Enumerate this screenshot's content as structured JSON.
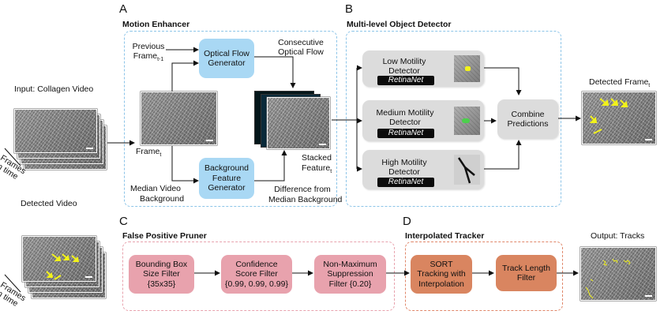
{
  "panels": {
    "a": {
      "letter": "A",
      "title": "Motion Enhancer"
    },
    "b": {
      "letter": "B",
      "title": "Multi-level Object Detector"
    },
    "c": {
      "letter": "C",
      "title": "False Positive Pruner"
    },
    "d": {
      "letter": "D",
      "title": "Interpolated Tracker"
    }
  },
  "left": {
    "input_label": "Input: Collagen Video",
    "frames_axis": "Frames",
    "in_time": "in time",
    "detected_video": "Detected Video"
  },
  "motion": {
    "previous_frame": "Previous",
    "previous_frame2": "Frame",
    "previous_sub": "t-1",
    "optical_flow": [
      "Optical Flow",
      "Generator"
    ],
    "consecutive": [
      "Consecutive",
      "Optical Flow"
    ],
    "frame_t": "Frame",
    "frame_t_sub": "t",
    "bg_feature": [
      "Background",
      "Feature",
      "Generator"
    ],
    "median_bg": [
      "Median  Video",
      "Background"
    ],
    "stacked": "Stacked",
    "stacked2": "Feature",
    "stacked_sub": "t",
    "difference": [
      "Difference from",
      "Median Background"
    ]
  },
  "detector": {
    "low": [
      "Low Motility",
      "Detector"
    ],
    "medium": [
      "Medium Motility",
      "Detector"
    ],
    "high": [
      "High Motility",
      "Detector"
    ],
    "retinanet": "RetinaNet",
    "combine": [
      "Combine",
      "Predictions"
    ],
    "detected_frame": "Detected Frame",
    "detected_frame_sub": "t"
  },
  "pruner": {
    "bbox": [
      "Bounding Box",
      "Size Filter",
      "{35x35}"
    ],
    "confidence": [
      "Confidence",
      "Score Filter",
      "{0.99, 0.99, 0.99}"
    ],
    "nms": [
      "Non-Maximum",
      "Suppression",
      "Filter  {0.20}"
    ]
  },
  "tracker": {
    "sort": [
      "SORT",
      "Tracking with",
      "Interpolation"
    ],
    "track_length": [
      "Track Length",
      "Filter"
    ],
    "output": "Output: Tracks"
  },
  "colors": {
    "blue_panel": "#8cc4e8",
    "orange_panel": "#e0876a",
    "pink_panel": "#e8a2ad",
    "blue_box": "#a9d8f4",
    "pink_box": "#e8a2ad",
    "orange_box": "#d98560",
    "grey_card": "#dcdcdc",
    "detection": "#f2f21a"
  }
}
